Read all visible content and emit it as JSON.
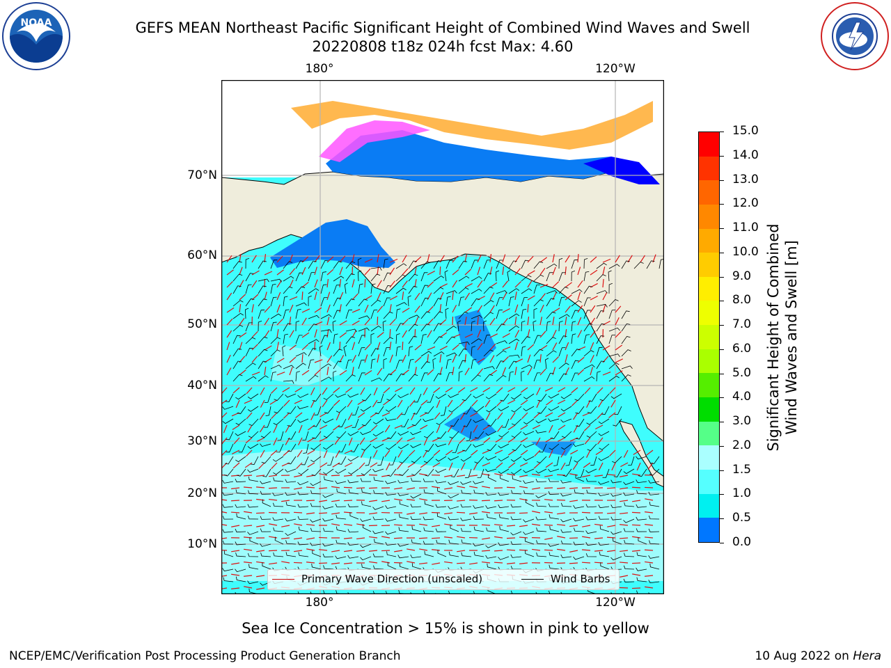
{
  "title": {
    "line1": "GEFS MEAN Northeast Pacific Significant Height of Combined Wind Waves and Swell",
    "line2": "20220808 t18z 024h fcst   Max: 4.60"
  },
  "logos": {
    "left": "NOAA",
    "right": "NATIONAL WEATHER SERVICE"
  },
  "map": {
    "lon_labels": [
      "180°",
      "120°W"
    ],
    "lat_labels": [
      "70°N",
      "60°N",
      "50°N",
      "40°N",
      "30°N",
      "20°N",
      "10°N"
    ],
    "colors": {
      "ocean_main": "#3ffdfd",
      "ocean_light": "#a8fcfc",
      "ocean_blue": "#0a7cf4",
      "land": "#efeddc",
      "ice_pink": "#ff55ff",
      "ice_orange": "#ffb84f",
      "deep_blue": "#0000ff",
      "grid": "#b4b4b4"
    }
  },
  "legend": {
    "wave_label": "Primary Wave Direction (unscaled)",
    "wind_label": "Wind Barbs"
  },
  "colorbar": {
    "title_line1": "Significant Height of Combined",
    "title_line2": "Wind Waves and Swell [m]",
    "ticks": [
      "15.0",
      "14.0",
      "13.0",
      "12.0",
      "11.0",
      "10.0",
      "9.0",
      "8.0",
      "7.0",
      "6.0",
      "5.0",
      "4.0",
      "3.0",
      "2.0",
      "1.5",
      "1.0",
      "0.5",
      "0.0"
    ],
    "colors_top_to_bottom": [
      "#ff0000",
      "#ff3300",
      "#ff6600",
      "#ff8800",
      "#ffaa00",
      "#ffcc00",
      "#ffee00",
      "#eeff00",
      "#ccff00",
      "#aaff00",
      "#55ee00",
      "#00dd00",
      "#55ff88",
      "#aaffff",
      "#55ffff",
      "#00f0f0",
      "#0077ff",
      "#0000ff"
    ]
  },
  "footer": {
    "ice_note": "Sea Ice Concentration > 15% is shown in pink to yellow",
    "branch": "NCEP/EMC/Verification Post Processing Product Generation Branch",
    "date": "10 Aug 2022 on",
    "machine": "Hera"
  }
}
